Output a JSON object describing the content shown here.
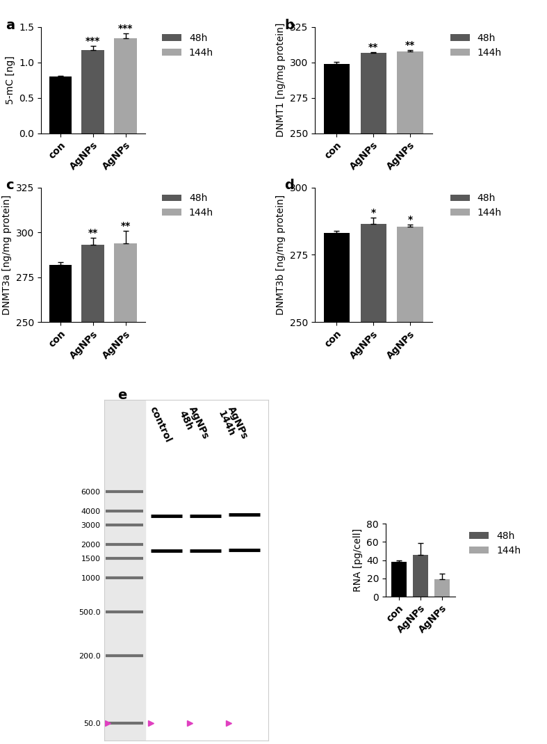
{
  "chart_data": [
    {
      "type": "bar",
      "panel": "a",
      "ylabel": "5-mC [ng]",
      "categories": [
        "con",
        "AgNPs",
        "AgNPs"
      ],
      "values": [
        0.8,
        1.17,
        1.34
      ],
      "errors": [
        0.01,
        0.06,
        0.07
      ],
      "colors": [
        "#000000",
        "#595959",
        "#a6a6a6"
      ],
      "annotations": [
        null,
        "***",
        "***"
      ],
      "legend_entries": [
        {
          "name": "48h",
          "color": "#595959"
        },
        {
          "name": "144h",
          "color": "#a6a6a6"
        }
      ],
      "legend": "upper left",
      "ylim": [
        0.0,
        1.5
      ],
      "yticks": [
        0.0,
        0.5,
        1.0,
        1.5
      ]
    },
    {
      "type": "bar",
      "panel": "b",
      "ylabel": "DNMT1 [ng/mg protein]",
      "categories": [
        "con",
        "AgNPs",
        "AgNPs"
      ],
      "values": [
        299,
        306.5,
        307.5
      ],
      "errors": [
        1.2,
        0.8,
        1.0
      ],
      "colors": [
        "#000000",
        "#595959",
        "#a6a6a6"
      ],
      "annotations": [
        null,
        "**",
        "**"
      ],
      "legend_entries": [
        {
          "name": "48h",
          "color": "#595959"
        },
        {
          "name": "144h",
          "color": "#a6a6a6"
        }
      ],
      "legend": "upper left",
      "ylim": [
        250,
        325
      ],
      "yticks": [
        250,
        275,
        300,
        325
      ]
    },
    {
      "type": "bar",
      "panel": "c",
      "ylabel": "DNMT3a [ng/mg protein]",
      "categories": [
        "con",
        "AgNPs",
        "AgNPs"
      ],
      "values": [
        282,
        293,
        294
      ],
      "errors": [
        1.5,
        4,
        7
      ],
      "colors": [
        "#000000",
        "#595959",
        "#a6a6a6"
      ],
      "annotations": [
        null,
        "**",
        "**"
      ],
      "legend_entries": [
        {
          "name": "48h",
          "color": "#595959"
        },
        {
          "name": "144h",
          "color": "#a6a6a6"
        }
      ],
      "legend": "upper left",
      "ylim": [
        250,
        325
      ],
      "yticks": [
        250,
        275,
        300,
        325
      ]
    },
    {
      "type": "bar",
      "panel": "d",
      "ylabel": "DNMT3b [ng/mg protein]",
      "categories": [
        "con",
        "AgNPs",
        "AgNPs"
      ],
      "values": [
        283,
        286.5,
        285.5
      ],
      "errors": [
        1,
        2.2,
        0.8
      ],
      "colors": [
        "#000000",
        "#595959",
        "#a6a6a6"
      ],
      "annotations": [
        null,
        "*",
        "*"
      ],
      "legend_entries": [
        {
          "name": "48h",
          "color": "#595959"
        },
        {
          "name": "144h",
          "color": "#a6a6a6"
        }
      ],
      "legend": "upper left",
      "ylim": [
        250,
        300
      ],
      "yticks": [
        250,
        275,
        300
      ]
    },
    {
      "type": "gel",
      "panel": "e",
      "lanes": [
        "control",
        "AgNPs\n48h",
        "AgNPs\n144h"
      ],
      "bands": [
        [
          3600,
          1750
        ],
        [
          3600,
          1750
        ],
        [
          3700,
          1780
        ]
      ],
      "log": "y",
      "ylim": [
        35,
        40000
      ],
      "yticks": [
        6000,
        4000,
        3000,
        2000,
        1500,
        1000,
        500.0,
        200.0,
        50.0
      ]
    },
    {
      "type": "bar",
      "ylabel": "RNA [pg/cell]",
      "categories": [
        "con",
        "AgNPs",
        "AgNPs"
      ],
      "values": [
        38.5,
        46,
        19.5
      ],
      "errors": [
        1.2,
        13,
        6
      ],
      "colors": [
        "#000000",
        "#595959",
        "#a6a6a6"
      ],
      "legend_entries": [
        {
          "name": "48h",
          "color": "#595959"
        },
        {
          "name": "144h",
          "color": "#a6a6a6"
        }
      ],
      "legend": "upper left",
      "ylim": [
        0,
        80
      ],
      "yticks": [
        0,
        20,
        40,
        60,
        80
      ]
    }
  ]
}
